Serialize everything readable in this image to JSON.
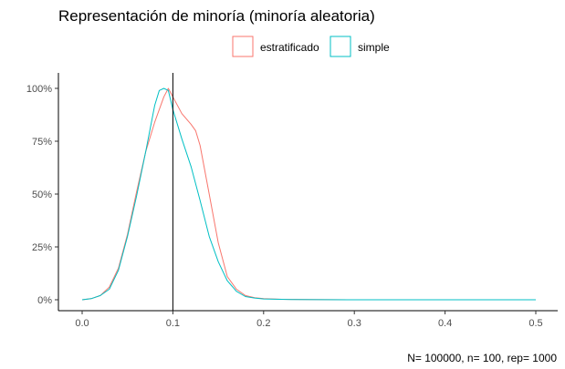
{
  "chart_data": {
    "type": "line",
    "title": "Representación de minoría (minoría aleatoria)",
    "caption": "N= 100000, n= 100, rep= 1000",
    "xlabel": "",
    "ylabel": "",
    "xlim": [
      -0.025,
      0.5
    ],
    "ylim": [
      0,
      1.05
    ],
    "x_ticks": [
      0.0,
      0.1,
      0.2,
      0.3,
      0.4,
      0.5
    ],
    "x_tick_labels": [
      "0.0",
      "0.1",
      "0.2",
      "0.3",
      "0.4",
      "0.5"
    ],
    "y_ticks": [
      0,
      0.25,
      0.5,
      0.75,
      1.0
    ],
    "y_tick_labels": [
      "0%",
      "25%",
      "50%",
      "75%",
      "100%"
    ],
    "grid": false,
    "legend_position": "top",
    "vline": 0.1,
    "vline_color": "#000000",
    "series": [
      {
        "name": "estratificado",
        "color": "#F8766D",
        "points": [
          [
            0.0,
            0.0
          ],
          [
            0.01,
            0.005
          ],
          [
            0.02,
            0.02
          ],
          [
            0.03,
            0.06
          ],
          [
            0.04,
            0.15
          ],
          [
            0.05,
            0.31
          ],
          [
            0.06,
            0.51
          ],
          [
            0.07,
            0.7
          ],
          [
            0.08,
            0.84
          ],
          [
            0.09,
            0.96
          ],
          [
            0.095,
            1.0
          ],
          [
            0.1,
            0.96
          ],
          [
            0.11,
            0.88
          ],
          [
            0.12,
            0.83
          ],
          [
            0.125,
            0.8
          ],
          [
            0.13,
            0.73
          ],
          [
            0.14,
            0.5
          ],
          [
            0.15,
            0.27
          ],
          [
            0.16,
            0.11
          ],
          [
            0.17,
            0.05
          ],
          [
            0.18,
            0.02
          ],
          [
            0.19,
            0.01
          ],
          [
            0.2,
            0.005
          ],
          [
            0.22,
            0.002
          ],
          [
            0.25,
            0.001
          ],
          [
            0.3,
            0.0
          ],
          [
            0.4,
            0.0
          ],
          [
            0.5,
            0.0
          ]
        ]
      },
      {
        "name": "simple",
        "color": "#00BFC4",
        "points": [
          [
            0.0,
            0.0
          ],
          [
            0.01,
            0.005
          ],
          [
            0.02,
            0.02
          ],
          [
            0.03,
            0.05
          ],
          [
            0.04,
            0.14
          ],
          [
            0.05,
            0.3
          ],
          [
            0.06,
            0.49
          ],
          [
            0.07,
            0.7
          ],
          [
            0.08,
            0.92
          ],
          [
            0.085,
            0.99
          ],
          [
            0.09,
            1.0
          ],
          [
            0.095,
            0.99
          ],
          [
            0.1,
            0.9
          ],
          [
            0.11,
            0.76
          ],
          [
            0.12,
            0.63
          ],
          [
            0.13,
            0.47
          ],
          [
            0.14,
            0.3
          ],
          [
            0.15,
            0.18
          ],
          [
            0.16,
            0.09
          ],
          [
            0.17,
            0.04
          ],
          [
            0.18,
            0.015
          ],
          [
            0.19,
            0.008
          ],
          [
            0.2,
            0.004
          ],
          [
            0.23,
            0.001
          ],
          [
            0.3,
            0.0
          ],
          [
            0.4,
            0.0
          ],
          [
            0.5,
            0.0
          ]
        ]
      }
    ]
  }
}
